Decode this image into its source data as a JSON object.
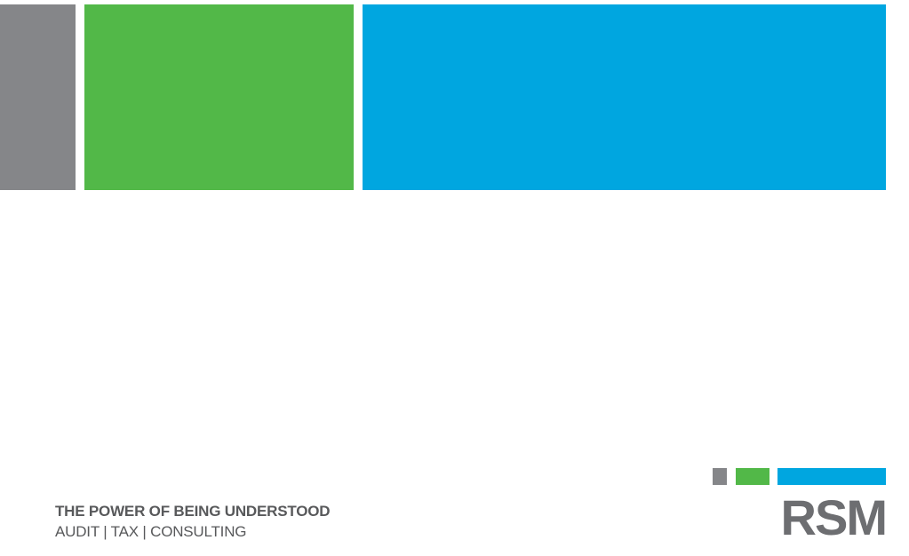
{
  "colors": {
    "gray": "#858689",
    "green": "#52b848",
    "blue": "#00a6e0",
    "text": "#58595b",
    "logo_text": "#6d6e71"
  },
  "tagline": {
    "line1": "THE POWER OF BEING UNDERSTOOD",
    "line2": "AUDIT | TAX | CONSULTING"
  },
  "logo": {
    "text": "RSM"
  }
}
